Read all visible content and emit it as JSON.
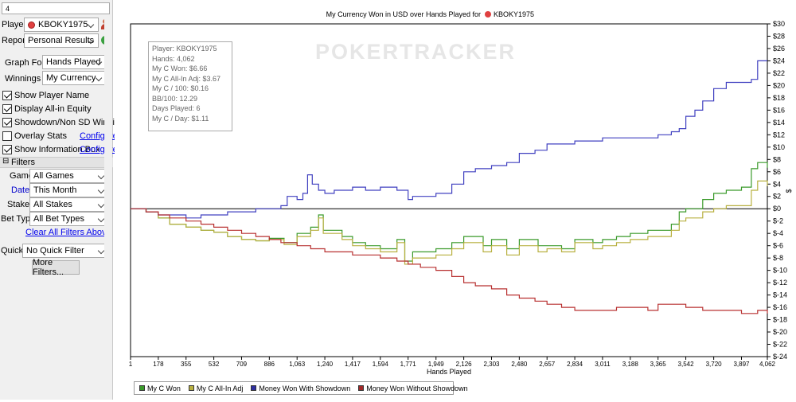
{
  "sidebar": {
    "top_field": "4",
    "player_label": "Player:",
    "player_value": "KBOKY1975",
    "report_label": "Report:",
    "report_value": "Personal Results",
    "graph_for_label": "Graph For:",
    "graph_for_value": "Hands Played",
    "winnings_label": "Winnings in:",
    "winnings_value": "My Currency",
    "checkboxes": [
      {
        "label": "Show Player Name",
        "checked": true
      },
      {
        "label": "Display All-in Equity",
        "checked": true
      },
      {
        "label": "Showdown/Non SD Winnings",
        "checked": true
      },
      {
        "label": "Overlay Stats",
        "checked": false,
        "link": "Configure"
      },
      {
        "label": "Show Information Box",
        "checked": true,
        "link": "Configure"
      }
    ],
    "filters_title": "Filters",
    "filters_toggle": "⊟",
    "filters": [
      {
        "label": "Game:",
        "value": "All Games"
      },
      {
        "label": "Date:",
        "value": "This Month"
      },
      {
        "label": "Stake:",
        "value": "All Stakes"
      },
      {
        "label": "Bet Type:",
        "value": "All Bet Types"
      }
    ],
    "clear_filters": "Clear All Filters Above",
    "quick_label": "Quick:",
    "quick_value": "No Quick Filter",
    "more_filters": "More Filters..."
  },
  "watermark": "POKERTRACKER",
  "info_box": [
    "Player: KBOKY1975",
    "Hands: 4,062",
    "My C Won: $6.66",
    "My C All-In Adj: $3.67",
    "My C / 100: $0.16",
    "BB/100: 12.29",
    "Days Played: 6",
    "My C / Day: $1.11"
  ],
  "colors": {
    "my_c_won": "#3a9a2a",
    "all_in_adj": "#b8b040",
    "with_showdown": "#4040c0",
    "without_showdown": "#b83030"
  },
  "chart_data": {
    "type": "line",
    "title": "My Currency Won in USD over Hands Played for",
    "title_player": "KBOKY1975",
    "xlabel": "Hands Played",
    "ylabel": "$",
    "xlim": [
      1,
      4062
    ],
    "ylim": [
      -24,
      30
    ],
    "x_ticks": [
      "1",
      "178",
      "355",
      "532",
      "709",
      "886",
      "1,063",
      "1,240",
      "1,417",
      "1,594",
      "1,771",
      "1,949",
      "2,126",
      "2,303",
      "2,480",
      "2,657",
      "2,834",
      "3,011",
      "3,188",
      "3,365",
      "3,542",
      "3,720",
      "3,897",
      "4,062"
    ],
    "y_ticks": [
      "$30",
      "$28",
      "$26",
      "$24",
      "$22",
      "$20",
      "$18",
      "$16",
      "$14",
      "$12",
      "$10",
      "$8",
      "$6",
      "$4",
      "$2",
      "$0",
      "$-2",
      "$-4",
      "$-6",
      "$-8",
      "$-10",
      "$-12",
      "$-14",
      "$-16",
      "$-18",
      "$-20",
      "$-22",
      "$-24"
    ],
    "y_tick_values": [
      30,
      28,
      26,
      24,
      22,
      20,
      18,
      16,
      14,
      12,
      10,
      8,
      6,
      4,
      2,
      0,
      -2,
      -4,
      -6,
      -8,
      -10,
      -12,
      -14,
      -16,
      -18,
      -20,
      -22,
      -24
    ],
    "x_tick_values": [
      1,
      178,
      355,
      532,
      709,
      886,
      1063,
      1240,
      1417,
      1594,
      1771,
      1949,
      2126,
      2303,
      2480,
      2657,
      2834,
      3011,
      3188,
      3365,
      3542,
      3720,
      3897,
      4062
    ],
    "series": [
      {
        "name": "My C Won",
        "x": [
          1,
          60,
          100,
          178,
          250,
          355,
          450,
          532,
          620,
          709,
          800,
          886,
          980,
          1063,
          1150,
          1200,
          1230,
          1260,
          1350,
          1417,
          1500,
          1594,
          1700,
          1750,
          1800,
          1949,
          2050,
          2126,
          2250,
          2303,
          2400,
          2480,
          2600,
          2657,
          2750,
          2834,
          2950,
          3011,
          3100,
          3188,
          3300,
          3365,
          3450,
          3500,
          3542,
          3650,
          3720,
          3800,
          3897,
          3960,
          4000,
          4062
        ],
        "values": [
          0,
          0,
          -0.5,
          -1.5,
          -2.5,
          -3,
          -3.5,
          -3.8,
          -4.5,
          -5,
          -5.2,
          -4.8,
          -5.5,
          -4,
          -3,
          -1,
          -3.5,
          -3.5,
          -4.5,
          -5.5,
          -6,
          -6.5,
          -5,
          -8.5,
          -7,
          -6.5,
          -5.5,
          -4.5,
          -6,
          -5,
          -6.5,
          -5,
          -6,
          -6,
          -6.5,
          -5,
          -5.5,
          -5,
          -4.5,
          -4,
          -3.5,
          -3.5,
          -2.5,
          -0.5,
          0,
          1.5,
          2.5,
          3,
          3.5,
          6.5,
          7.5,
          6.66
        ]
      },
      {
        "name": "My C All-In Adj",
        "x": [
          1,
          60,
          100,
          178,
          250,
          355,
          450,
          532,
          620,
          709,
          800,
          886,
          980,
          1063,
          1150,
          1200,
          1230,
          1260,
          1350,
          1417,
          1500,
          1594,
          1700,
          1750,
          1800,
          1949,
          2050,
          2126,
          2250,
          2303,
          2400,
          2480,
          2600,
          2657,
          2750,
          2834,
          2950,
          3011,
          3100,
          3188,
          3300,
          3365,
          3450,
          3500,
          3542,
          3650,
          3720,
          3800,
          3897,
          3960,
          4000,
          4062
        ],
        "values": [
          0,
          0,
          -0.5,
          -1.5,
          -2.5,
          -3,
          -3.5,
          -3.8,
          -4.5,
          -5,
          -5.2,
          -5,
          -5.8,
          -4.5,
          -3.5,
          -1.5,
          -4,
          -4,
          -5,
          -6,
          -6.5,
          -7,
          -5.5,
          -9,
          -8,
          -7.5,
          -6.5,
          -5.5,
          -7,
          -6,
          -7.5,
          -6,
          -7,
          -6.5,
          -7,
          -5.5,
          -6.5,
          -6,
          -5.5,
          -5,
          -4.5,
          -4.5,
          -3.5,
          -2,
          -1.5,
          -0.5,
          0,
          0.5,
          0.5,
          3,
          4.5,
          3.67
        ]
      },
      {
        "name": "Money Won With Showdown",
        "x": [
          1,
          100,
          178,
          250,
          355,
          450,
          532,
          620,
          709,
          800,
          886,
          960,
          1000,
          1063,
          1100,
          1130,
          1160,
          1200,
          1240,
          1300,
          1417,
          1500,
          1594,
          1700,
          1771,
          1800,
          1949,
          2050,
          2126,
          2200,
          2303,
          2400,
          2480,
          2580,
          2657,
          2750,
          2834,
          3011,
          3100,
          3188,
          3300,
          3365,
          3450,
          3500,
          3542,
          3600,
          3650,
          3720,
          3800,
          3897,
          3960,
          4000,
          4062
        ],
        "values": [
          0,
          -0.5,
          -1,
          -1,
          -1.5,
          -1,
          -1,
          -0.5,
          -0.5,
          0,
          0,
          0.5,
          2,
          1.5,
          2.5,
          5.5,
          4,
          3,
          2.5,
          3,
          3.5,
          3,
          3.5,
          3,
          1.5,
          2,
          2.5,
          4,
          6,
          6.5,
          7,
          7.5,
          9,
          9.5,
          10.5,
          10.5,
          11,
          11.5,
          11.5,
          11.5,
          11.5,
          12,
          12.5,
          13,
          15,
          16,
          17.5,
          19.5,
          20.5,
          20.5,
          21,
          24,
          24
        ]
      },
      {
        "name": "Money Won Without Showdown",
        "x": [
          1,
          100,
          178,
          250,
          355,
          450,
          532,
          620,
          709,
          800,
          886,
          960,
          1063,
          1150,
          1240,
          1300,
          1417,
          1500,
          1594,
          1700,
          1771,
          1850,
          1949,
          2050,
          2126,
          2200,
          2303,
          2400,
          2480,
          2580,
          2657,
          2750,
          2834,
          2950,
          3011,
          3100,
          3188,
          3300,
          3365,
          3450,
          3542,
          3650,
          3720,
          3800,
          3897,
          3960,
          4000,
          4062
        ],
        "values": [
          0,
          -0.5,
          -1,
          -1.5,
          -2,
          -2.5,
          -3,
          -3.5,
          -4,
          -4.5,
          -5,
          -5.5,
          -6,
          -6.5,
          -7,
          -7,
          -7.5,
          -7.5,
          -8,
          -8.5,
          -9,
          -9.5,
          -10,
          -11,
          -12,
          -12.5,
          -13,
          -14,
          -14.5,
          -15,
          -15.5,
          -16,
          -16.5,
          -16.5,
          -16.5,
          -16,
          -16,
          -16.5,
          -15.5,
          -15.5,
          -16,
          -16.5,
          -16.5,
          -16.5,
          -17,
          -17,
          -16.5,
          -17
        ]
      }
    ],
    "legend": [
      "My C Won",
      "My C All-In Adj",
      "Money Won With Showdown",
      "Money Won Without Showdown"
    ],
    "legend_position": "bottom-left",
    "grid": false,
    "zero_line": true
  }
}
